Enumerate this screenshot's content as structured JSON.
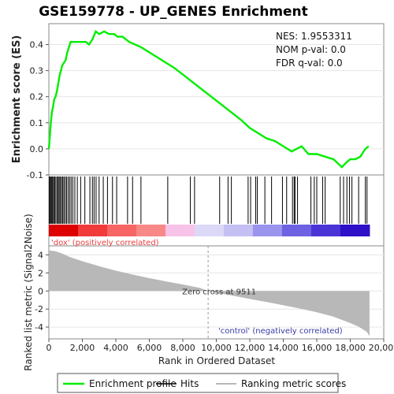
{
  "chart_data": {
    "type": "line",
    "title": "GSE159778 - UP_GENES Enrichment",
    "stats": {
      "nes": "NES: 1.9553311",
      "nom_pval": "NOM p-val: 0.0",
      "fdr_qval": "FDR q-val: 0.0"
    },
    "xlabel": "Rank in Ordered Dataset",
    "xlim": [
      0,
      20000
    ],
    "xticks": [
      0,
      2000,
      4000,
      6000,
      8000,
      10000,
      12000,
      14000,
      16000,
      18000,
      20000
    ],
    "xtick_labels": [
      "0",
      "2,000",
      "4,000",
      "6,000",
      "8,000",
      "10,000",
      "12,000",
      "14,000",
      "16,000",
      "18,000",
      "20,000"
    ],
    "es_panel": {
      "ylabel": "Enrichment score (ES)",
      "ylim": [
        -0.1,
        0.48
      ],
      "yticks": [
        -0.1,
        0.0,
        0.1,
        0.2,
        0.3,
        0.4
      ],
      "ytick_labels": [
        "-0.1",
        "0.0",
        "0.1",
        "0.2",
        "0.3",
        "0.4"
      ],
      "series_name": "Enrichment profile",
      "color": "#00ee00",
      "x": [
        0,
        60,
        120,
        180,
        250,
        320,
        400,
        480,
        560,
        640,
        720,
        800,
        900,
        1000,
        1100,
        1200,
        1300,
        1400,
        1600,
        1800,
        2000,
        2200,
        2400,
        2600,
        2800,
        3000,
        3300,
        3600,
        3900,
        4100,
        4400,
        4800,
        5500,
        6500,
        7500,
        8500,
        9500,
        10500,
        11500,
        12000,
        12500,
        13000,
        13500,
        14000,
        14500,
        14800,
        15100,
        15500,
        16000,
        16500,
        17000,
        17500,
        17800,
        18000,
        18300,
        18600,
        18900,
        19100
      ],
      "y": [
        0.0,
        0.05,
        0.1,
        0.14,
        0.16,
        0.19,
        0.2,
        0.22,
        0.25,
        0.28,
        0.3,
        0.32,
        0.33,
        0.34,
        0.37,
        0.39,
        0.41,
        0.41,
        0.41,
        0.41,
        0.41,
        0.41,
        0.4,
        0.42,
        0.45,
        0.44,
        0.45,
        0.44,
        0.44,
        0.43,
        0.43,
        0.41,
        0.39,
        0.35,
        0.31,
        0.26,
        0.21,
        0.16,
        0.11,
        0.08,
        0.06,
        0.04,
        0.03,
        0.01,
        -0.01,
        0.0,
        0.01,
        -0.02,
        -0.02,
        -0.03,
        -0.04,
        -0.07,
        -0.05,
        -0.04,
        -0.04,
        -0.03,
        0.0,
        0.01
      ]
    },
    "hits": [
      30,
      80,
      130,
      180,
      230,
      290,
      350,
      420,
      500,
      560,
      620,
      690,
      760,
      830,
      900,
      980,
      1060,
      1150,
      1240,
      1330,
      1430,
      1550,
      1700,
      1900,
      2150,
      2450,
      2600,
      2700,
      2820,
      3000,
      3250,
      3500,
      3800,
      4050,
      4700,
      5000,
      5500,
      7100,
      8450,
      8700,
      10200,
      10700,
      10900,
      11900,
      12050,
      12350,
      12450,
      12900,
      13300,
      13950,
      14200,
      14550,
      14650,
      14700,
      14850,
      15650,
      15850,
      16000,
      16350,
      16500,
      17400,
      17600,
      17800,
      17950,
      18100,
      18500,
      18900,
      19000
    ],
    "rank_bar_colors": [
      "#dd0000",
      "#f13b3b",
      "#f76565",
      "#f88888",
      "#f8c3e8",
      "#dcd8f8",
      "#c4c0f4",
      "#9a94ee",
      "#6e62e2",
      "#4a34d6",
      "#2d10c8"
    ],
    "metric_panel": {
      "ylabel": "Ranked list metric (Signal2Noise)",
      "ylim": [
        -5.3,
        5.0
      ],
      "yticks": [
        -4,
        -2,
        0,
        2,
        4
      ],
      "ytick_labels": [
        "-4",
        "-2",
        "0",
        "2",
        "4"
      ],
      "zero_cross": 9511,
      "x": [
        0,
        400,
        800,
        1200,
        1600,
        2000,
        3000,
        4000,
        5000,
        6000,
        7000,
        8000,
        9000,
        9511,
        10000,
        11000,
        12000,
        13000,
        14000,
        15000,
        16000,
        17000,
        18000,
        18500,
        19000,
        19150
      ],
      "y": [
        4.5,
        4.4,
        4.15,
        3.8,
        3.55,
        3.3,
        2.75,
        2.25,
        1.82,
        1.42,
        1.06,
        0.72,
        0.36,
        0.0,
        -0.18,
        -0.52,
        -0.88,
        -1.22,
        -1.58,
        -1.95,
        -2.35,
        -2.85,
        -3.55,
        -3.95,
        -4.55,
        -5.0
      ]
    },
    "annotations": {
      "pos_label": "'dox' (positively correlated)",
      "neg_label": "'control' (negatively correlated)",
      "zero_cross_label": "Zero cross at 9511"
    },
    "legend": {
      "enrichment": "Enrichment profile",
      "hits": "Hits",
      "ranking": "Ranking metric scores"
    }
  }
}
